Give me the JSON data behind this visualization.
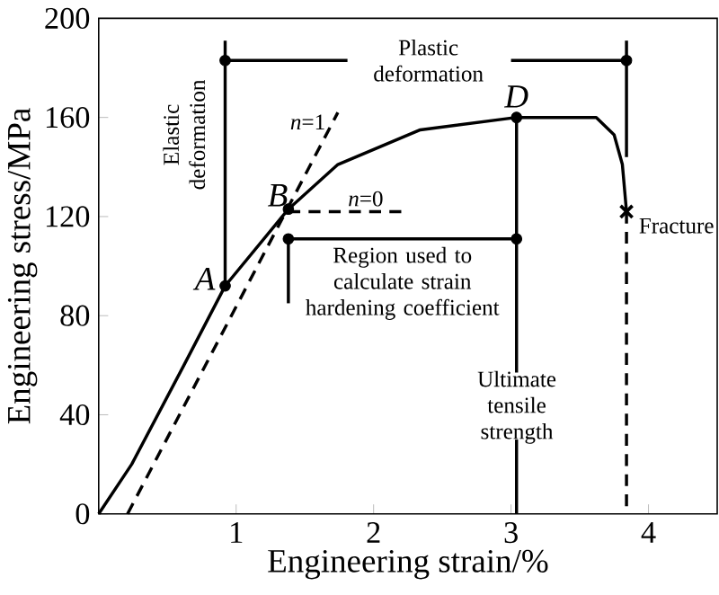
{
  "chart_data": {
    "type": "line",
    "xlabel": "Engineering strain/%",
    "ylabel": "Engineering stress/MPa",
    "xlim": [
      0,
      4.5
    ],
    "ylim": [
      0,
      200
    ],
    "xticks": [
      1,
      2,
      3,
      4
    ],
    "yticks": [
      0,
      40,
      80,
      120,
      160,
      200
    ],
    "series": [
      {
        "color": "#000000",
        "line_style": "solid",
        "x": [
          0,
          0.24,
          0.62,
          0.92,
          1.38,
          1.74,
          2.34,
          3.04,
          3.62,
          3.75,
          3.81,
          3.84
        ],
        "values": [
          0,
          20,
          60,
          92,
          123,
          141,
          155,
          160,
          160,
          153,
          141,
          122
        ]
      },
      {
        "color": "#000000",
        "line_style": "dashed",
        "x": [
          0.21,
          1.74
        ],
        "values": [
          0,
          162
        ]
      },
      {
        "color": "#000000",
        "line_style": "dashed",
        "x": [
          1.38,
          2.23
        ],
        "values": [
          122,
          122
        ]
      },
      {
        "color": "#000000",
        "line_style": "dashed",
        "x": [
          3.84,
          3.84
        ],
        "values": [
          122,
          0
        ]
      },
      {
        "color": "#000000",
        "line_style": "solid",
        "x": [
          0.92,
          0.92
        ],
        "values": [
          92,
          191
        ]
      },
      {
        "color": "#000000",
        "line_style": "solid",
        "x": [
          0.92,
          1.81
        ],
        "values": [
          183,
          183
        ]
      },
      {
        "color": "#000000",
        "line_style": "solid",
        "x": [
          3.0,
          3.84
        ],
        "values": [
          183,
          183
        ]
      },
      {
        "color": "#000000",
        "line_style": "solid",
        "x": [
          3.84,
          3.84
        ],
        "values": [
          191,
          144
        ]
      },
      {
        "color": "#000000",
        "line_style": "solid",
        "x": [
          1.38,
          3.04
        ],
        "values": [
          111,
          111
        ]
      },
      {
        "color": "#000000",
        "line_style": "solid",
        "x": [
          1.38,
          1.38
        ],
        "values": [
          111,
          85
        ]
      },
      {
        "color": "#000000",
        "line_style": "solid",
        "x": [
          3.04,
          3.04
        ],
        "values": [
          160,
          57
        ]
      },
      {
        "color": "#000000",
        "line_style": "solid",
        "x": [
          3.04,
          3.04
        ],
        "values": [
          30,
          0
        ]
      },
      {
        "type": "scatter",
        "color": "#000000",
        "marker": "circle",
        "x": [
          0.92,
          1.38,
          3.04,
          0.92,
          3.84,
          1.38,
          3.04
        ],
        "values": [
          92,
          123,
          160,
          183,
          183,
          111,
          111
        ]
      },
      {
        "type": "scatter",
        "color": "#000000",
        "marker": "cross",
        "x": [
          3.84
        ],
        "values": [
          122
        ]
      }
    ],
    "annotations": [
      {
        "text": "A",
        "x": 0.92,
        "y": 92
      },
      {
        "text": "B",
        "x": 1.38,
        "y": 123
      },
      {
        "text": "D",
        "x": 3.04,
        "y": 160
      },
      {
        "text": "*n*=1",
        "x": 1.74,
        "y": 162
      },
      {
        "text": "*n*=0",
        "x": 2.23,
        "y": 122
      },
      {
        "text": "Fracture",
        "x": 3.84,
        "y": 122
      },
      "Elastic deformation",
      "Plastic deformation",
      "Region used to calculate strain hardening coefficient",
      "Ultimate tensile strength"
    ]
  }
}
